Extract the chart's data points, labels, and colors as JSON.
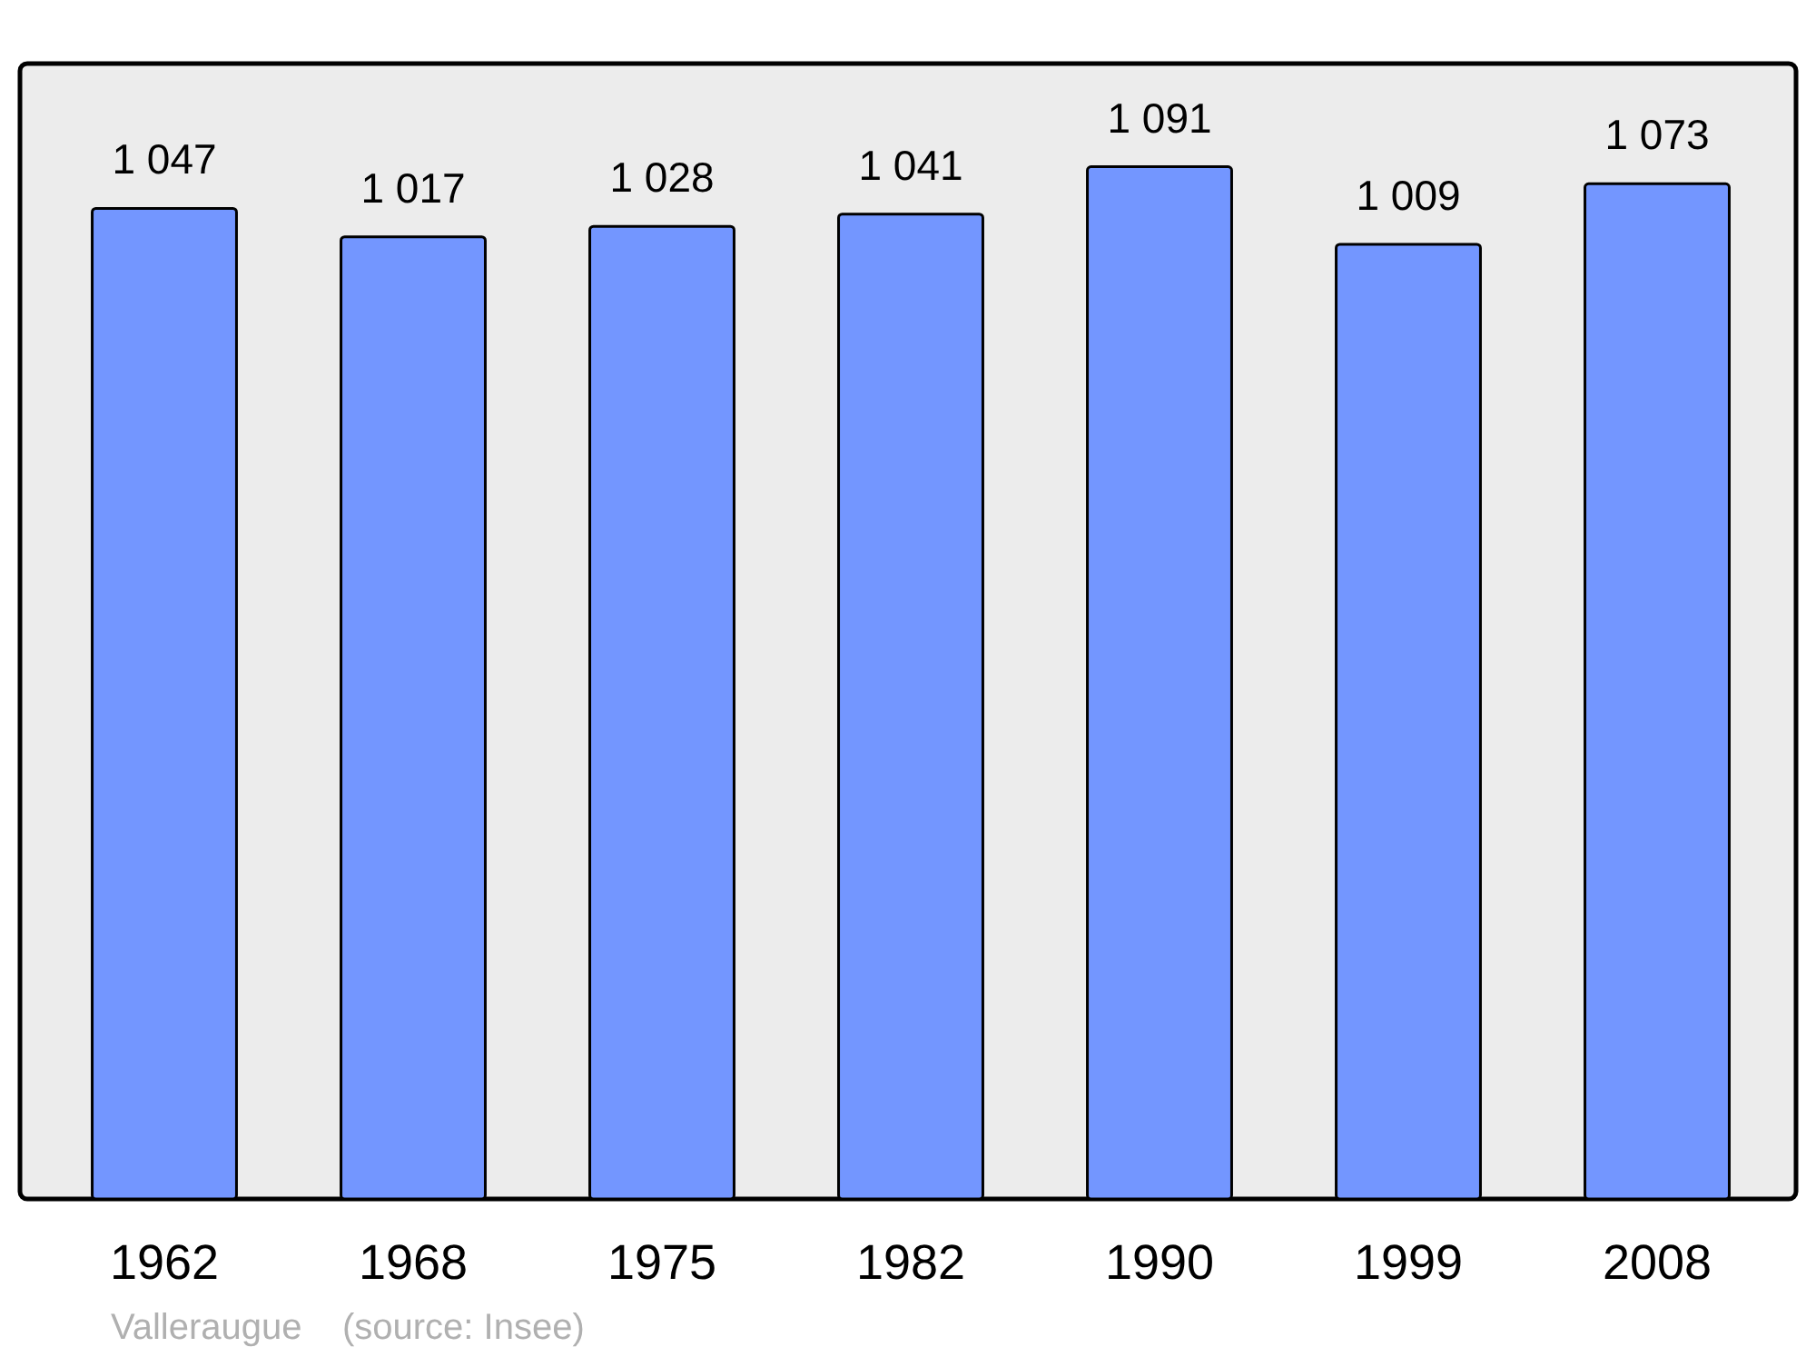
{
  "chart_data": {
    "type": "bar",
    "categories": [
      "1962",
      "1968",
      "1975",
      "1982",
      "1990",
      "1999",
      "2008"
    ],
    "values": [
      1047,
      1017,
      1028,
      1041,
      1091,
      1009,
      1073
    ],
    "value_labels": [
      "1 047",
      "1 017",
      "1 028",
      "1 041",
      "1 091",
      "1 009",
      "1 073"
    ],
    "color": "#7396ff",
    "ylim": [
      0,
      1200
    ],
    "tick_labels": "x",
    "annotations": [
      "Valleraugue    (source: Insee)"
    ]
  }
}
